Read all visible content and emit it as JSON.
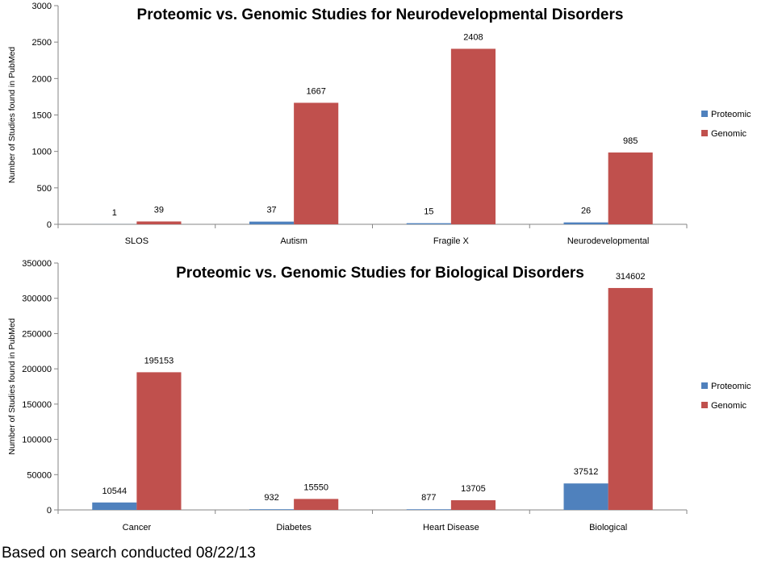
{
  "footnote": "Based on search conducted 08/22/13",
  "colors": {
    "proteomic": "#4F81BD",
    "genomic": "#C0504D",
    "axis": "#868686"
  },
  "chart_data": [
    {
      "type": "bar",
      "title": "Proteomic vs. Genomic Studies for Neurodevelopmental Disorders",
      "ylabel": "Number of Studies found in PubMed",
      "xlabel": "",
      "ylim": [
        0,
        3000
      ],
      "yticks": [
        0,
        500,
        1000,
        1500,
        2000,
        2500,
        3000
      ],
      "categories": [
        "SLOS",
        "Autism",
        "Fragile X",
        "Neurodevelopmental"
      ],
      "series": [
        {
          "name": "Proteomic",
          "values": [
            1,
            37,
            15,
            26
          ]
        },
        {
          "name": "Genomic",
          "values": [
            39,
            1667,
            2408,
            985
          ]
        }
      ],
      "legend": "right",
      "grid": false
    },
    {
      "type": "bar",
      "title": "Proteomic vs. Genomic Studies for Biological Disorders",
      "ylabel": "Number of Studies found in PubMed",
      "xlabel": "",
      "ylim": [
        0,
        350000
      ],
      "yticks": [
        0,
        50000,
        100000,
        150000,
        200000,
        250000,
        300000,
        350000
      ],
      "categories": [
        "Cancer",
        "Diabetes",
        "Heart Disease",
        "Biological"
      ],
      "series": [
        {
          "name": "Proteomic",
          "values": [
            10544,
            932,
            877,
            37512
          ]
        },
        {
          "name": "Genomic",
          "values": [
            195153,
            15550,
            13705,
            314602
          ]
        }
      ],
      "legend": "right",
      "grid": false
    }
  ]
}
